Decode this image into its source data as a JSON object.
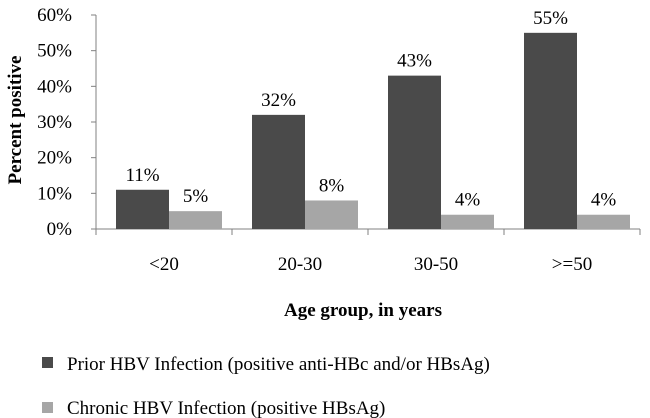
{
  "chart_data": {
    "type": "bar",
    "categories": [
      "<20",
      "20-30",
      "30-50",
      ">=50"
    ],
    "series": [
      {
        "name": "Prior HBV Infection (positive anti-HBc and/or HBsAg)",
        "values": [
          11,
          32,
          43,
          55
        ],
        "data_labels": [
          "11%",
          "32%",
          "43%",
          "55%"
        ],
        "color": "#4a4a4a"
      },
      {
        "name": "Chronic HBV Infection (positive HBsAg)",
        "values": [
          5,
          8,
          4,
          4
        ],
        "data_labels": [
          "5%",
          "8%",
          "4%",
          "4%"
        ],
        "color": "#a6a6a6"
      }
    ],
    "xlabel": "Age group, in years",
    "ylabel": "Percent positive",
    "ylim": [
      0,
      60
    ],
    "yticks": [
      "0%",
      "10%",
      "20%",
      "30%",
      "40%",
      "50%",
      "60%"
    ],
    "grid": false,
    "legend": "bottom"
  }
}
